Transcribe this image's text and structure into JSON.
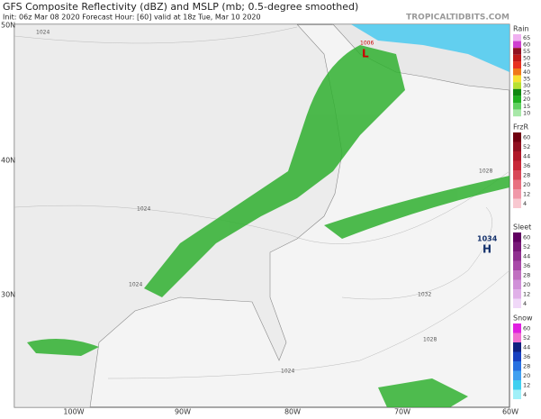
{
  "header": {
    "title": "GFS Composite Reflectivity (dBZ) and MSLP (mb; 0.5-degree smoothed)",
    "subtitle": "Init: 06z Mar 08 2020   Forecast Hour: [60]   valid at 18z Tue, Mar 10 2020",
    "watermark": "TROPICALTIDBITS.COM"
  },
  "map": {
    "lat_labels": [
      "50N",
      "40N",
      "30N"
    ],
    "lon_labels": [
      "100W",
      "90W",
      "80W",
      "70W",
      "60W"
    ],
    "isobar_labels": [
      "1024",
      "1024",
      "1024",
      "1024",
      "1028",
      "1028",
      "1032",
      "1006"
    ],
    "high": {
      "pressure": "1034",
      "symbol": "H"
    },
    "low": {
      "symbol": "L"
    }
  },
  "legend": {
    "scales": [
      {
        "name": "Rain",
        "labels": [
          "65",
          "60",
          "55",
          "50",
          "45",
          "40",
          "35",
          "30",
          "25",
          "20",
          "15",
          "10"
        ],
        "colors": [
          "#f0b0f0",
          "#d040d0",
          "#901020",
          "#c01818",
          "#e83020",
          "#f07818",
          "#f8e030",
          "#b8e030",
          "#108810",
          "#20b020",
          "#60d060",
          "#a8e8a8"
        ]
      },
      {
        "name": "FrzR",
        "labels": [
          "60",
          "52",
          "44",
          "36",
          "28",
          "20",
          "12",
          "4"
        ],
        "colors": [
          "#700010",
          "#901020",
          "#b01828",
          "#c82838",
          "#d84858",
          "#e87080",
          "#f098a8",
          "#f8c8d0"
        ]
      },
      {
        "name": "Sleet",
        "labels": [
          "60",
          "52",
          "44",
          "36",
          "28",
          "20",
          "12",
          "4"
        ],
        "colors": [
          "#600060",
          "#781878",
          "#903090",
          "#a848a8",
          "#c070c0",
          "#d090d8",
          "#e0b0e8",
          "#f0d8f8"
        ]
      },
      {
        "name": "Snow",
        "labels": [
          "60",
          "52",
          "44",
          "36",
          "28",
          "20",
          "12",
          "4"
        ],
        "colors": [
          "#e020e0",
          "#f070d0",
          "#102080",
          "#1840c0",
          "#2870e0",
          "#40a0f0",
          "#40d0f0",
          "#a0f0f8"
        ]
      }
    ]
  }
}
